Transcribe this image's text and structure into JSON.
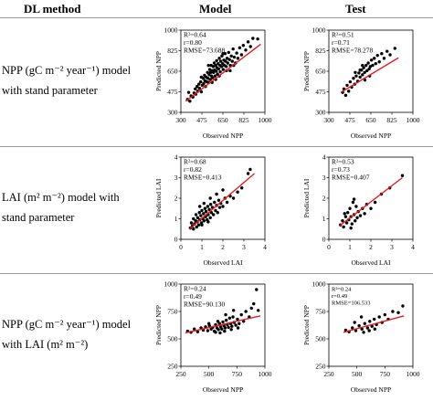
{
  "headers": {
    "method": "DL method",
    "model": "Model",
    "test": "Test"
  },
  "rows": [
    {
      "method_lines": [
        "NPP (gC m⁻² year⁻¹) model",
        "with stand parameter"
      ]
    },
    {
      "method_lines": [
        "LAI (m² m⁻²) model with",
        "stand parameter"
      ]
    },
    {
      "method_lines": [
        "NPP (gC m⁻² year⁻¹) model",
        "with LAI (m² m⁻²)"
      ]
    }
  ],
  "chart_data": [
    {
      "type": "scatter",
      "panel": "row1-model",
      "xlabel": "Observed NPP",
      "ylabel": "Predicted NPP",
      "xlim": [
        300,
        1000
      ],
      "ylim": [
        300,
        1000
      ],
      "xticks": [
        "300",
        "475",
        "650",
        "825",
        "1000"
      ],
      "yticks": [
        "300",
        "475",
        "650",
        "825",
        "1000"
      ],
      "stats": [
        "R²=0.64",
        "r=0.80",
        "RMSE=73.688"
      ],
      "fit": [
        [
          340,
          395
        ],
        [
          965,
          880
        ]
      ],
      "points": [
        [
          355,
          410
        ],
        [
          365,
          470
        ],
        [
          375,
          395
        ],
        [
          385,
          440
        ],
        [
          400,
          430
        ],
        [
          410,
          465
        ],
        [
          420,
          500
        ],
        [
          425,
          455
        ],
        [
          435,
          520
        ],
        [
          440,
          480
        ],
        [
          450,
          540
        ],
        [
          455,
          505
        ],
        [
          465,
          560
        ],
        [
          470,
          475
        ],
        [
          478,
          530
        ],
        [
          485,
          590
        ],
        [
          490,
          545
        ],
        [
          497,
          615
        ],
        [
          500,
          570
        ],
        [
          505,
          520
        ],
        [
          510,
          600
        ],
        [
          515,
          560
        ],
        [
          522,
          640
        ],
        [
          525,
          590
        ],
        [
          530,
          555
        ],
        [
          535,
          620
        ],
        [
          540,
          665
        ],
        [
          545,
          580
        ],
        [
          548,
          640
        ],
        [
          552,
          700
        ],
        [
          555,
          610
        ],
        [
          560,
          655
        ],
        [
          565,
          595
        ],
        [
          570,
          690
        ],
        [
          572,
          640
        ],
        [
          578,
          720
        ],
        [
          580,
          660
        ],
        [
          585,
          610
        ],
        [
          590,
          700
        ],
        [
          595,
          650
        ],
        [
          598,
          740
        ],
        [
          600,
          680
        ],
        [
          605,
          625
        ],
        [
          610,
          715
        ],
        [
          615,
          670
        ],
        [
          620,
          760
        ],
        [
          625,
          700
        ],
        [
          628,
          645
        ],
        [
          632,
          735
        ],
        [
          638,
          690
        ],
        [
          642,
          780
        ],
        [
          648,
          715
        ],
        [
          652,
          665
        ],
        [
          658,
          745
        ],
        [
          662,
          700
        ],
        [
          668,
          800
        ],
        [
          672,
          735
        ],
        [
          678,
          690
        ],
        [
          685,
          760
        ],
        [
          690,
          720
        ],
        [
          698,
          810
        ],
        [
          705,
          750
        ],
        [
          712,
          700
        ],
        [
          720,
          780
        ],
        [
          728,
          735
        ],
        [
          735,
          840
        ],
        [
          745,
          770
        ],
        [
          755,
          720
        ],
        [
          765,
          805
        ],
        [
          775,
          760
        ],
        [
          790,
          850
        ],
        [
          805,
          790
        ],
        [
          820,
          870
        ],
        [
          840,
          830
        ],
        [
          860,
          900
        ],
        [
          880,
          860
        ],
        [
          900,
          930
        ],
        [
          940,
          925
        ],
        [
          560,
          555
        ],
        [
          620,
          610
        ],
        [
          680,
          655
        ],
        [
          470,
          600
        ],
        [
          530,
          700
        ],
        [
          590,
          580
        ],
        [
          650,
          800
        ],
        [
          710,
          655
        ],
        [
          740,
          700
        ]
      ]
    },
    {
      "type": "scatter",
      "panel": "row1-test",
      "xlabel": "Observed NPP",
      "ylabel": "Predicted NPP",
      "xlim": [
        300,
        1000
      ],
      "ylim": [
        300,
        1000
      ],
      "xticks": [
        "300",
        "475",
        "650",
        "825",
        "1000"
      ],
      "yticks": [
        "300",
        "475",
        "650",
        "825",
        "1000"
      ],
      "stats": [
        "R²=0.51",
        "r=0.71",
        "RMSE=78.278"
      ],
      "fit": [
        [
          400,
          470
        ],
        [
          880,
          765
        ]
      ],
      "points": [
        [
          415,
          470
        ],
        [
          425,
          500
        ],
        [
          440,
          445
        ],
        [
          452,
          530
        ],
        [
          465,
          480
        ],
        [
          478,
          560
        ],
        [
          490,
          515
        ],
        [
          505,
          590
        ],
        [
          515,
          540
        ],
        [
          528,
          610
        ],
        [
          540,
          565
        ],
        [
          550,
          635
        ],
        [
          560,
          600
        ],
        [
          572,
          660
        ],
        [
          580,
          620
        ],
        [
          590,
          680
        ],
        [
          598,
          640
        ],
        [
          610,
          700
        ],
        [
          618,
          655
        ],
        [
          628,
          720
        ],
        [
          636,
          670
        ],
        [
          645,
          690
        ],
        [
          655,
          745
        ],
        [
          665,
          700
        ],
        [
          678,
          760
        ],
        [
          690,
          715
        ],
        [
          705,
          785
        ],
        [
          720,
          730
        ],
        [
          740,
          800
        ],
        [
          760,
          760
        ],
        [
          785,
          820
        ],
        [
          810,
          790
        ],
        [
          850,
          845
        ],
        [
          560,
          660
        ],
        [
          600,
          575
        ],
        [
          640,
          610
        ],
        [
          520,
          640
        ],
        [
          580,
          700
        ]
      ]
    },
    {
      "type": "scatter",
      "panel": "row2-model",
      "xlabel": "Observed LAI",
      "ylabel": "Predicted LAI",
      "xlim": [
        0,
        4
      ],
      "ylim": [
        0,
        4
      ],
      "xticks": [
        "0",
        "1",
        "2",
        "3",
        "4"
      ],
      "yticks": [
        "0",
        "1",
        "2",
        "3",
        "4"
      ],
      "stats": [
        "R²=0.68",
        "r=0.82",
        "RMSE=0.413"
      ],
      "fit": [
        [
          0.4,
          0.5
        ],
        [
          3.5,
          3.2
        ]
      ],
      "points": [
        [
          0.45,
          0.55
        ],
        [
          0.5,
          0.8
        ],
        [
          0.55,
          0.65
        ],
        [
          0.6,
          1.0
        ],
        [
          0.65,
          0.75
        ],
        [
          0.7,
          0.9
        ],
        [
          0.72,
          1.2
        ],
        [
          0.78,
          0.85
        ],
        [
          0.8,
          1.05
        ],
        [
          0.85,
          0.7
        ],
        [
          0.88,
          1.3
        ],
        [
          0.9,
          0.95
        ],
        [
          0.95,
          1.15
        ],
        [
          0.98,
          0.8
        ],
        [
          1.0,
          1.4
        ],
        [
          1.05,
          1.0
        ],
        [
          1.08,
          1.25
        ],
        [
          1.1,
          0.9
        ],
        [
          1.15,
          1.5
        ],
        [
          1.18,
          1.1
        ],
        [
          1.2,
          1.35
        ],
        [
          1.25,
          0.95
        ],
        [
          1.28,
          1.6
        ],
        [
          1.3,
          1.2
        ],
        [
          1.35,
          1.45
        ],
        [
          1.4,
          1.05
        ],
        [
          1.42,
          1.7
        ],
        [
          1.45,
          1.3
        ],
        [
          1.5,
          1.55
        ],
        [
          1.55,
          1.2
        ],
        [
          1.6,
          1.8
        ],
        [
          1.65,
          1.4
        ],
        [
          1.7,
          1.65
        ],
        [
          1.75,
          1.3
        ],
        [
          1.8,
          1.9
        ],
        [
          1.85,
          1.55
        ],
        [
          1.9,
          1.75
        ],
        [
          2.0,
          1.6
        ],
        [
          2.1,
          2.0
        ],
        [
          2.2,
          1.8
        ],
        [
          2.35,
          2.1
        ],
        [
          2.5,
          2.0
        ],
        [
          2.7,
          2.3
        ],
        [
          2.9,
          2.5
        ],
        [
          3.2,
          3.2
        ],
        [
          3.3,
          3.4
        ],
        [
          0.6,
          0.5
        ],
        [
          0.75,
          0.6
        ],
        [
          1.0,
          0.7
        ],
        [
          1.3,
          0.85
        ],
        [
          0.9,
          1.6
        ],
        [
          1.1,
          1.75
        ],
        [
          1.4,
          2.0
        ],
        [
          1.7,
          2.2
        ],
        [
          2.0,
          2.4
        ]
      ]
    },
    {
      "type": "scatter",
      "panel": "row2-test",
      "xlabel": "Observed LAI",
      "ylabel": "Predicted LAI",
      "xlim": [
        0,
        4
      ],
      "ylim": [
        0,
        4
      ],
      "xticks": [
        "0",
        "1",
        "2",
        "3",
        "4"
      ],
      "yticks": [
        "0",
        "1",
        "2",
        "3",
        "4"
      ],
      "stats": [
        "R²=0.53",
        "r=0.73",
        "RMSE=0.407"
      ],
      "fit": [
        [
          0.5,
          0.65
        ],
        [
          3.5,
          3.0
        ]
      ],
      "points": [
        [
          0.55,
          0.7
        ],
        [
          0.65,
          0.9
        ],
        [
          0.7,
          0.6
        ],
        [
          0.8,
          1.1
        ],
        [
          0.85,
          0.8
        ],
        [
          0.9,
          1.3
        ],
        [
          0.95,
          0.95
        ],
        [
          1.0,
          1.5
        ],
        [
          1.05,
          1.1
        ],
        [
          1.1,
          0.75
        ],
        [
          1.15,
          1.8
        ],
        [
          1.2,
          1.2
        ],
        [
          1.25,
          0.9
        ],
        [
          1.3,
          1.6
        ],
        [
          1.35,
          1.05
        ],
        [
          1.4,
          1.35
        ],
        [
          1.5,
          1.15
        ],
        [
          1.6,
          1.5
        ],
        [
          1.7,
          1.25
        ],
        [
          1.8,
          1.7
        ],
        [
          2.0,
          1.5
        ],
        [
          2.2,
          1.8
        ],
        [
          2.5,
          2.2
        ],
        [
          2.9,
          2.5
        ],
        [
          3.5,
          3.1
        ],
        [
          1.2,
          1.95
        ],
        [
          0.75,
          1.25
        ],
        [
          1.05,
          0.55
        ]
      ]
    },
    {
      "type": "scatter",
      "panel": "row3-model",
      "xlabel": "Observed NPP",
      "ylabel": "Predicted NPP",
      "xlim": [
        250,
        1000
      ],
      "ylim": [
        250,
        1000
      ],
      "xticks": [
        "250",
        "500",
        "750",
        "1000"
      ],
      "yticks": [
        "250",
        "500",
        "750",
        "1000"
      ],
      "stats": [
        "R²=0.24",
        "r=0.49",
        "RMSE=90.130"
      ],
      "fit": [
        [
          290,
          555
        ],
        [
          960,
          710
        ]
      ],
      "points": [
        [
          310,
          570
        ],
        [
          340,
          560
        ],
        [
          370,
          590
        ],
        [
          400,
          565
        ],
        [
          430,
          600
        ],
        [
          450,
          580
        ],
        [
          470,
          610
        ],
        [
          490,
          575
        ],
        [
          505,
          620
        ],
        [
          520,
          590
        ],
        [
          535,
          605
        ],
        [
          548,
          570
        ],
        [
          560,
          630
        ],
        [
          572,
          600
        ],
        [
          585,
          585
        ],
        [
          595,
          640
        ],
        [
          605,
          610
        ],
        [
          615,
          590
        ],
        [
          625,
          655
        ],
        [
          635,
          620
        ],
        [
          645,
          600
        ],
        [
          655,
          670
        ],
        [
          665,
          630
        ],
        [
          675,
          605
        ],
        [
          685,
          690
        ],
        [
          695,
          640
        ],
        [
          705,
          615
        ],
        [
          715,
          700
        ],
        [
          725,
          650
        ],
        [
          740,
          625
        ],
        [
          755,
          680
        ],
        [
          770,
          640
        ],
        [
          790,
          720
        ],
        [
          810,
          660
        ],
        [
          830,
          750
        ],
        [
          860,
          700
        ],
        [
          880,
          780
        ],
        [
          900,
          820
        ],
        [
          925,
          950
        ],
        [
          940,
          760
        ],
        [
          560,
          560
        ],
        [
          600,
          555
        ],
        [
          640,
          570
        ],
        [
          700,
          585
        ],
        [
          760,
          600
        ],
        [
          500,
          640
        ],
        [
          580,
          660
        ],
        [
          650,
          720
        ],
        [
          720,
          760
        ]
      ]
    },
    {
      "type": "scatter",
      "panel": "row3-test",
      "xlabel": "Observed NPP",
      "ylabel": "Predicted NPP",
      "xlim": [
        250,
        1000
      ],
      "ylim": [
        250,
        1000
      ],
      "xticks": [
        "250",
        "500",
        "750",
        "1000"
      ],
      "yticks": [
        "250",
        "500",
        "750",
        "1000"
      ],
      "stats": [
        "R²=0.24",
        "r=0.49",
        "RMSE=106.533"
      ],
      "fit": [
        [
          380,
          560
        ],
        [
          920,
          710
        ]
      ],
      "points": [
        [
          400,
          580
        ],
        [
          430,
          565
        ],
        [
          460,
          600
        ],
        [
          490,
          575
        ],
        [
          520,
          620
        ],
        [
          545,
          590
        ],
        [
          570,
          640
        ],
        [
          595,
          600
        ],
        [
          615,
          660
        ],
        [
          635,
          615
        ],
        [
          655,
          680
        ],
        [
          675,
          630
        ],
        [
          700,
          700
        ],
        [
          725,
          650
        ],
        [
          750,
          720
        ],
        [
          780,
          680
        ],
        [
          820,
          750
        ],
        [
          870,
          740
        ],
        [
          910,
          800
        ],
        [
          560,
          560
        ],
        [
          610,
          575
        ],
        [
          660,
          590
        ],
        [
          480,
          650
        ],
        [
          540,
          700
        ]
      ]
    }
  ]
}
